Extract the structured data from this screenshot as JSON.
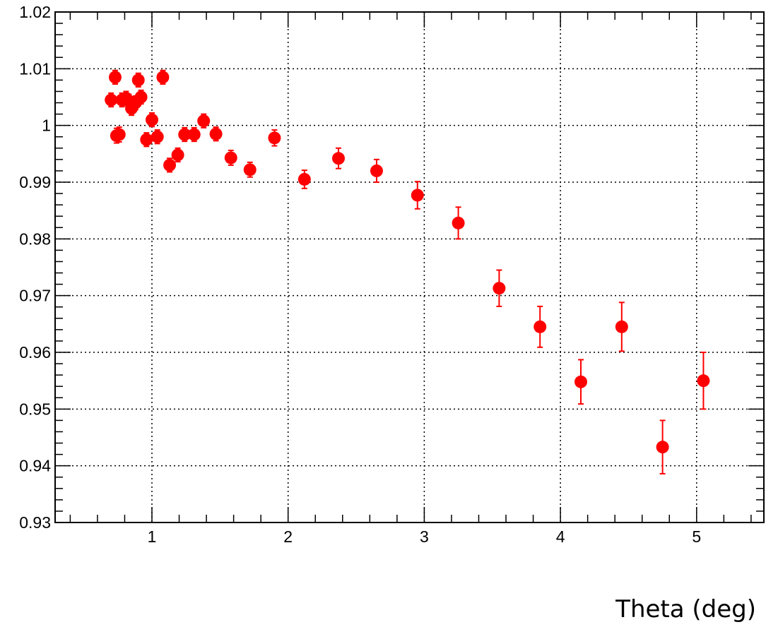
{
  "chart_data": {
    "type": "scatter",
    "title": "",
    "xlabel": "Theta (deg)",
    "ylabel": "",
    "xlim": [
      0.3,
      5.5
    ],
    "ylim": [
      0.93,
      1.02
    ],
    "grid": true,
    "x_ticks": [
      1,
      2,
      3,
      4,
      5
    ],
    "x_tick_labels": [
      "1",
      "2",
      "3",
      "4",
      "5"
    ],
    "y_ticks": [
      0.93,
      0.94,
      0.95,
      0.96,
      0.97,
      0.98,
      0.99,
      1.0,
      1.01,
      1.02
    ],
    "y_tick_labels": [
      "0.93",
      "0.94",
      "0.95",
      "0.96",
      "0.97",
      "0.98",
      "0.99",
      "1",
      "1.01",
      "1.02"
    ],
    "marker_color": "#ff0000",
    "series": [
      {
        "points": [
          {
            "x": 0.7,
            "y": 1.0045,
            "err": 0.0012
          },
          {
            "x": 0.73,
            "y": 1.0085,
            "err": 0.0012
          },
          {
            "x": 0.74,
            "y": 0.9982,
            "err": 0.0013
          },
          {
            "x": 0.76,
            "y": 0.9984,
            "err": 0.0013
          },
          {
            "x": 0.78,
            "y": 1.0045,
            "err": 0.0012
          },
          {
            "x": 0.81,
            "y": 1.0048,
            "err": 0.0012
          },
          {
            "x": 0.83,
            "y": 1.0043,
            "err": 0.0012
          },
          {
            "x": 0.85,
            "y": 1.003,
            "err": 0.0012
          },
          {
            "x": 0.88,
            "y": 1.004,
            "err": 0.0012
          },
          {
            "x": 0.9,
            "y": 1.008,
            "err": 0.0012
          },
          {
            "x": 0.92,
            "y": 1.005,
            "err": 0.0012
          },
          {
            "x": 0.96,
            "y": 0.9975,
            "err": 0.0012
          },
          {
            "x": 1.0,
            "y": 1.001,
            "err": 0.0012
          },
          {
            "x": 1.04,
            "y": 0.998,
            "err": 0.0012
          },
          {
            "x": 1.08,
            "y": 1.0085,
            "err": 0.0012
          },
          {
            "x": 1.13,
            "y": 0.993,
            "err": 0.0012
          },
          {
            "x": 1.19,
            "y": 0.9948,
            "err": 0.0012
          },
          {
            "x": 1.24,
            "y": 0.9984,
            "err": 0.0012
          },
          {
            "x": 1.31,
            "y": 0.9984,
            "err": 0.0012
          },
          {
            "x": 1.38,
            "y": 1.0008,
            "err": 0.0012
          },
          {
            "x": 1.47,
            "y": 0.9985,
            "err": 0.0012
          },
          {
            "x": 1.58,
            "y": 0.9943,
            "err": 0.0013
          },
          {
            "x": 1.72,
            "y": 0.9922,
            "err": 0.0013
          },
          {
            "x": 1.9,
            "y": 0.9978,
            "err": 0.0014
          },
          {
            "x": 2.12,
            "y": 0.9905,
            "err": 0.0016
          },
          {
            "x": 2.37,
            "y": 0.9942,
            "err": 0.0018
          },
          {
            "x": 2.65,
            "y": 0.992,
            "err": 0.002
          },
          {
            "x": 2.95,
            "y": 0.9877,
            "err": 0.0024
          },
          {
            "x": 3.25,
            "y": 0.9828,
            "err": 0.0028
          },
          {
            "x": 3.55,
            "y": 0.9713,
            "err": 0.0032
          },
          {
            "x": 3.85,
            "y": 0.9645,
            "err": 0.0036
          },
          {
            "x": 4.15,
            "y": 0.9548,
            "err": 0.0039
          },
          {
            "x": 4.45,
            "y": 0.9645,
            "err": 0.0043
          },
          {
            "x": 4.75,
            "y": 0.9433,
            "err": 0.0047
          },
          {
            "x": 5.05,
            "y": 0.955,
            "err": 0.005
          }
        ]
      }
    ]
  }
}
